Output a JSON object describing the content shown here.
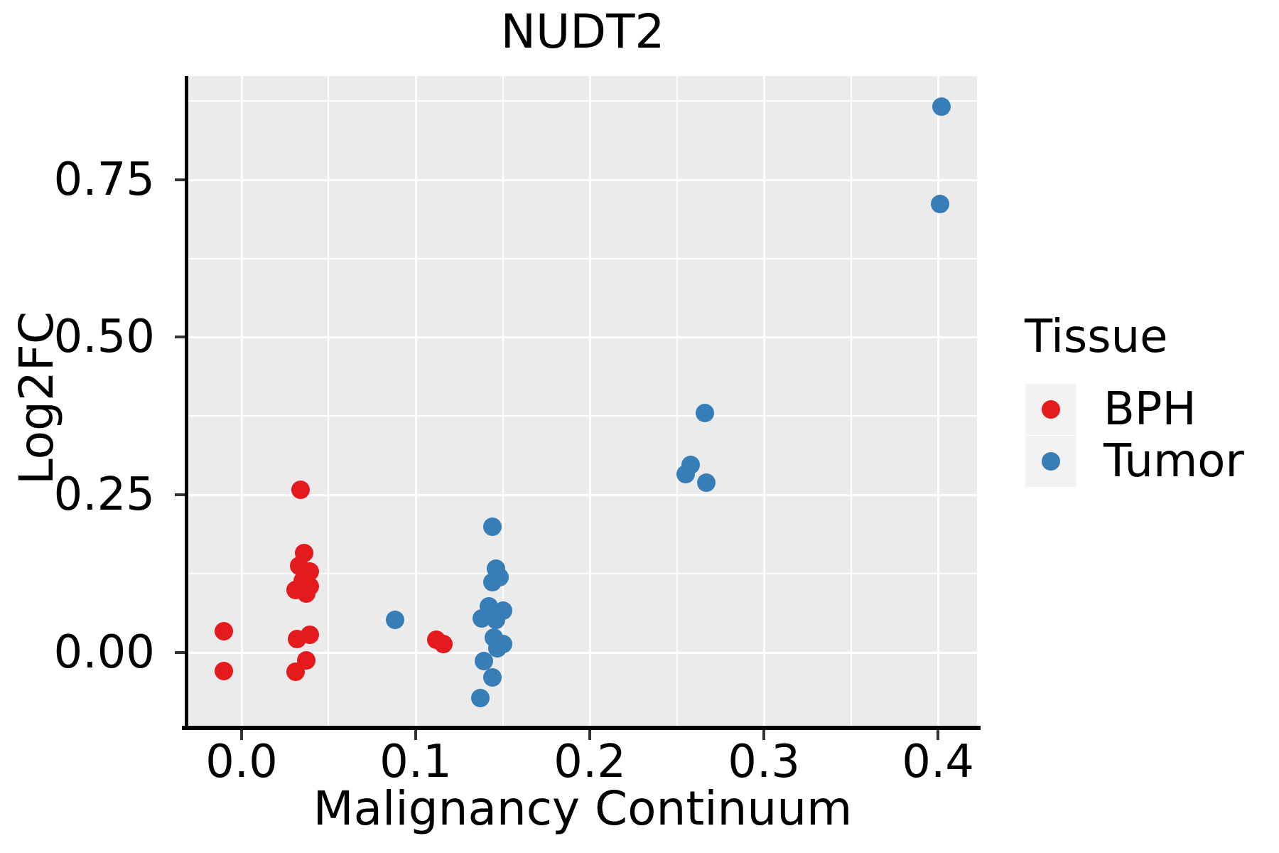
{
  "title": "NUDT2",
  "axes": {
    "x": {
      "title": "Malignancy Continuum",
      "tick_labels": [
        "0.0",
        "0.1",
        "0.2",
        "0.3",
        "0.4"
      ],
      "tick_values": [
        0,
        0.1,
        0.2,
        0.3,
        0.4
      ],
      "minor_tick_values": [
        0.05,
        0.15,
        0.25,
        0.35
      ],
      "range": [
        -0.0306,
        0.4224
      ]
    },
    "y": {
      "title": "Log2FC",
      "tick_labels": [
        "0.00",
        "0.25",
        "0.50",
        "0.75"
      ],
      "tick_values": [
        0,
        0.25,
        0.5,
        0.75
      ],
      "minor_tick_values": [
        0.125,
        0.375,
        0.625,
        0.875
      ],
      "range": [
        -0.1161,
        0.9143
      ]
    }
  },
  "legend": {
    "title": "Tissue",
    "items": [
      {
        "label": "BPH",
        "color": "#E41A1C"
      },
      {
        "label": "Tumor",
        "color": "#377EB8"
      }
    ]
  },
  "colors": {
    "panel_background": "#EBEBEB",
    "gridline": "#FFFFFF",
    "legend_key_background": "#F2F2F2",
    "axis_line": "#000000",
    "bph": "#E41A1C",
    "tumor": "#377EB8"
  },
  "chart_data": {
    "type": "scatter",
    "title": "NUDT2",
    "xlabel": "Malignancy Continuum",
    "ylabel": "Log2FC",
    "xlim": [
      -0.0306,
      0.4224
    ],
    "ylim": [
      -0.1161,
      0.9143
    ],
    "x_ticks": [
      0,
      0.1,
      0.2,
      0.3,
      0.4
    ],
    "y_ticks": [
      0,
      0.25,
      0.5,
      0.75
    ],
    "grid": true,
    "legend_title": "Tissue",
    "legend_position": "right",
    "series": [
      {
        "name": "BPH",
        "color": "#E41A1C",
        "points": [
          [
            -0.01,
            0.034
          ],
          [
            -0.01,
            -0.029
          ],
          [
            0.034,
            0.258
          ],
          [
            0.036,
            0.158
          ],
          [
            0.033,
            0.137
          ],
          [
            0.039,
            0.129
          ],
          [
            0.035,
            0.114
          ],
          [
            0.039,
            0.105
          ],
          [
            0.031,
            0.099
          ],
          [
            0.037,
            0.094
          ],
          [
            0.039,
            0.028
          ],
          [
            0.032,
            0.022
          ],
          [
            0.037,
            -0.012
          ],
          [
            0.031,
            -0.03
          ],
          [
            0.112,
            0.02
          ],
          [
            0.116,
            0.013
          ]
        ]
      },
      {
        "name": "Tumor",
        "color": "#377EB8",
        "points": [
          [
            0.088,
            0.052
          ],
          [
            0.144,
            0.2
          ],
          [
            0.146,
            0.133
          ],
          [
            0.148,
            0.119
          ],
          [
            0.144,
            0.112
          ],
          [
            0.142,
            0.073
          ],
          [
            0.15,
            0.067
          ],
          [
            0.138,
            0.054
          ],
          [
            0.146,
            0.052
          ],
          [
            0.145,
            0.024
          ],
          [
            0.15,
            0.013
          ],
          [
            0.147,
            0.007
          ],
          [
            0.139,
            -0.013
          ],
          [
            0.144,
            -0.04
          ],
          [
            0.137,
            -0.072
          ],
          [
            0.266,
            0.38
          ],
          [
            0.258,
            0.298
          ],
          [
            0.255,
            0.283
          ],
          [
            0.267,
            0.269
          ],
          [
            0.402,
            0.866
          ],
          [
            0.401,
            0.711
          ]
        ]
      }
    ]
  }
}
